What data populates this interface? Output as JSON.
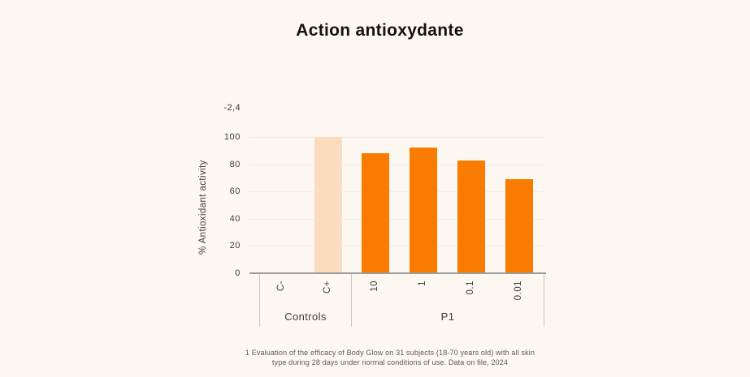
{
  "page": {
    "title": "Action antioxydante"
  },
  "colors": {
    "background": "#FCF8F1",
    "bar_orange": "#F97C00",
    "bar_peach": "#FBDCBE",
    "grid": "#EFECE5",
    "axis": "#9D9B97",
    "divider": "#C9C6BF",
    "text": "#3C3C3C",
    "footnote": "#5A5A5A",
    "title": "#131313"
  },
  "chart_data": {
    "type": "bar",
    "title": "Action antioxydante",
    "ylabel": "% Antioxidant activity",
    "yticks": [
      0,
      20,
      40,
      60,
      80,
      100
    ],
    "ylim": [
      0,
      107
    ],
    "grid": true,
    "legend": false,
    "outlier_annotation": "-2,4",
    "groups": [
      {
        "name": "Controls",
        "bars": [
          {
            "category": "C-",
            "value": -2.4,
            "color": null,
            "bar_visible": false
          },
          {
            "category": "C+",
            "value": 100,
            "color": "#FBDCBE",
            "bar_visible": true
          }
        ]
      },
      {
        "name": "P1",
        "bars": [
          {
            "category": "10",
            "value": 88,
            "color": "#F97C00",
            "bar_visible": true
          },
          {
            "category": "1",
            "value": 92,
            "color": "#F97C00",
            "bar_visible": true
          },
          {
            "category": "0.1",
            "value": 83,
            "color": "#F97C00",
            "bar_visible": true
          },
          {
            "category": "0.01",
            "value": 69,
            "color": "#F97C00",
            "bar_visible": true
          }
        ]
      }
    ]
  },
  "footnote": {
    "line1": "1 Evaluation of the efficacy of Body Glow on 31 subjects (18-70 years old) with all skin",
    "line2": "type during 28 days under normal conditions of use. Data on file, 2024"
  }
}
